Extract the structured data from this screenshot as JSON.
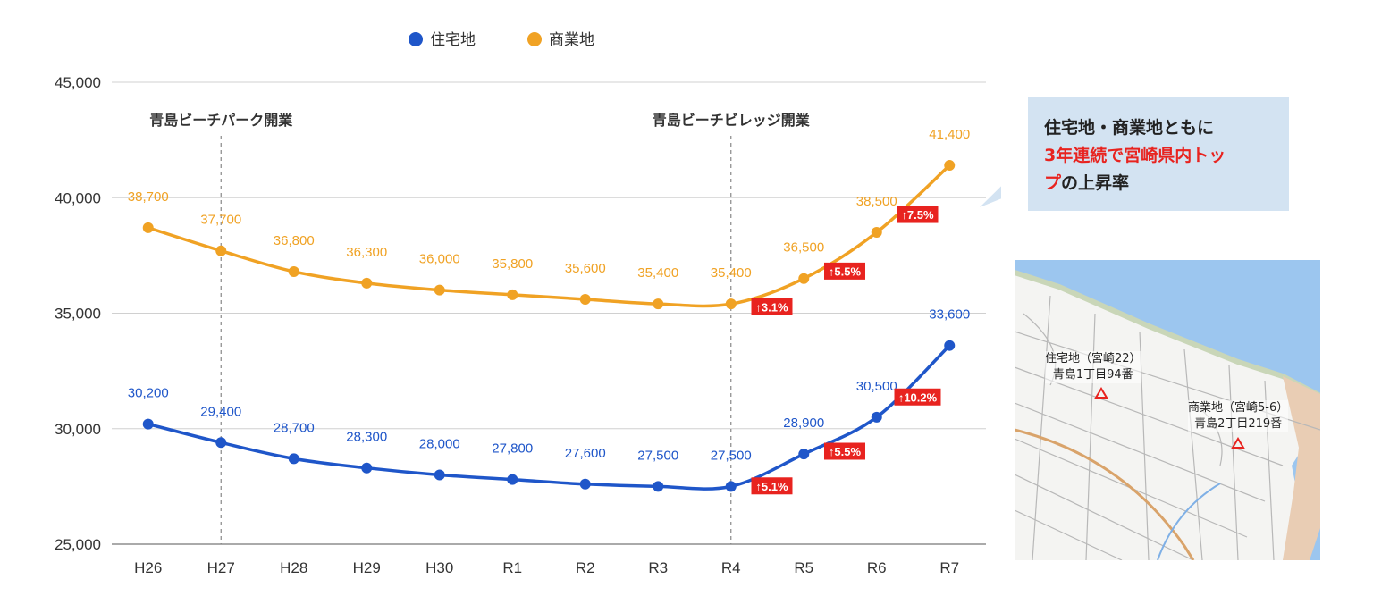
{
  "chart_data": {
    "type": "line",
    "categories": [
      "H26",
      "H27",
      "H28",
      "H29",
      "H30",
      "R1",
      "R2",
      "R3",
      "R4",
      "R5",
      "R6",
      "R7"
    ],
    "series": [
      {
        "name": "住宅地",
        "color": "#1f56c9",
        "values": [
          30200,
          29400,
          28700,
          28300,
          28000,
          27800,
          27600,
          27500,
          27500,
          28900,
          30500,
          33600
        ],
        "labels": [
          "30,200",
          "29,400",
          "28,700",
          "28,300",
          "28,000",
          "27,800",
          "27,600",
          "27,500",
          "27,500",
          "28,900",
          "30,500",
          "33,600"
        ]
      },
      {
        "name": "商業地",
        "color": "#f0a224",
        "values": [
          38700,
          37700,
          36800,
          36300,
          36000,
          35800,
          35600,
          35400,
          35400,
          36500,
          38500,
          41400
        ],
        "labels": [
          "38,700",
          "37,700",
          "36,800",
          "36,300",
          "36,000",
          "35,800",
          "35,600",
          "35,400",
          "35,400",
          "36,500",
          "38,500",
          "41,400"
        ]
      }
    ],
    "ylim": [
      25000,
      45000
    ],
    "yticks": [
      25000,
      30000,
      35000,
      40000,
      45000
    ],
    "ytick_labels": [
      "25,000",
      "30,000",
      "35,000",
      "40,000",
      "45,000"
    ],
    "legend_position": "top",
    "annotations": [
      {
        "text": "青島ビーチパーク開業",
        "at": "H27"
      },
      {
        "text": "青島ビーチビレッジ開業",
        "at": "R4"
      }
    ],
    "rate_badges": [
      {
        "series": "商業地",
        "at": "R4",
        "text": "↑3.1%"
      },
      {
        "series": "商業地",
        "at": "R5",
        "text": "↑5.5%"
      },
      {
        "series": "商業地",
        "at": "R6",
        "text": "↑7.5%"
      },
      {
        "series": "住宅地",
        "at": "R4",
        "text": "↑5.1%"
      },
      {
        "series": "住宅地",
        "at": "R5",
        "text": "↑5.5%"
      },
      {
        "series": "住宅地",
        "at": "R6",
        "text": "↑10.2%"
      }
    ]
  },
  "callout": {
    "line1": "住宅地・商業地ともに",
    "line2_red": "3年連続で宮崎県内トッ",
    "line3_red": "プ",
    "line3_rest": "の上昇率"
  },
  "map": {
    "label_residential_1": "住宅地（宮崎22）",
    "label_residential_2": "青島1丁目94番",
    "label_commercial_1": "商業地（宮崎5-6）",
    "label_commercial_2": "青島2丁目219番"
  }
}
